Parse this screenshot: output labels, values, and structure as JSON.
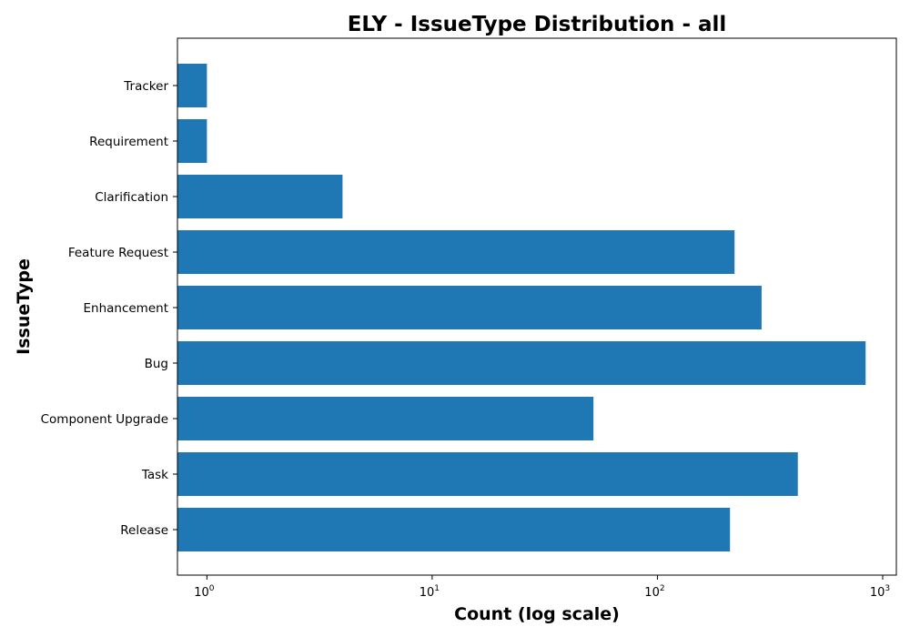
{
  "chart_data": {
    "type": "bar",
    "orientation": "horizontal",
    "title": "ELY - IssueType Distribution - all",
    "xlabel": "Count (log scale)",
    "ylabel": "IssueType",
    "xscale": "log",
    "xlim": [
      0.74,
      1150
    ],
    "xticks": [
      {
        "base": "10",
        "exp": "0",
        "value": 1
      },
      {
        "base": "10",
        "exp": "1",
        "value": 10
      },
      {
        "base": "10",
        "exp": "2",
        "value": 100
      },
      {
        "base": "10",
        "exp": "3",
        "value": 1000
      }
    ],
    "categories": [
      "Tracker",
      "Requirement",
      "Clarification",
      "Feature Request",
      "Enhancement",
      "Bug",
      "Component Upgrade",
      "Task",
      "Release"
    ],
    "values": [
      1,
      1,
      4,
      220,
      290,
      840,
      52,
      420,
      210
    ],
    "color": "#1f77b4",
    "grid": false,
    "legend": "none"
  }
}
